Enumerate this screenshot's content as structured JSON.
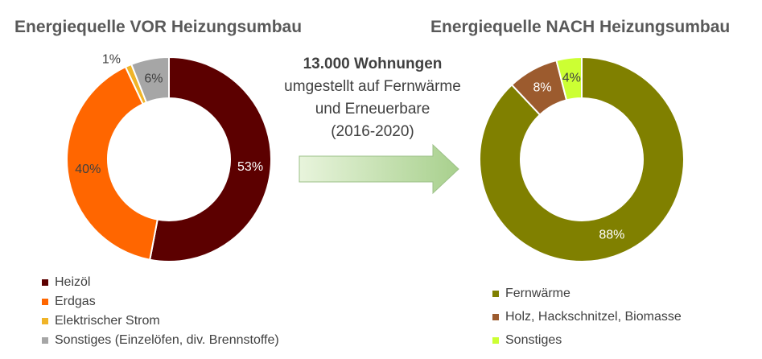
{
  "chart_data": [
    {
      "type": "donut",
      "title": "Energiequelle VOR Heizungsumbau",
      "slices": [
        {
          "name": "Heizöl",
          "value": 53,
          "label": "53%",
          "color": "#5c0000",
          "label_color": "#ffffff"
        },
        {
          "name": "Erdgas",
          "value": 40,
          "label": "40%",
          "color": "#ff6600",
          "label_color": "#404040"
        },
        {
          "name": "Elektrischer Strom",
          "value": 1,
          "label": "1%",
          "color": "#f0b428",
          "label_color": "#404040"
        },
        {
          "name": "Sonstiges (Einzelöfen, div. Brennstoffe)",
          "value": 6,
          "label": "6%",
          "color": "#a6a6a6",
          "label_color": "#404040"
        }
      ]
    },
    {
      "type": "donut",
      "title": "Energiequelle NACH Heizungsumbau",
      "slices": [
        {
          "name": "Fernwärme",
          "value": 88,
          "label": "88%",
          "color": "#808000",
          "label_color": "#ffffff"
        },
        {
          "name": "Holz, Hackschnitzel, Biomasse",
          "value": 8,
          "label": "8%",
          "color": "#9c5b2e",
          "label_color": "#ffffff"
        },
        {
          "name": "Sonstiges",
          "value": 4,
          "label": "4%",
          "color": "#ccff33",
          "label_color": "#404040"
        }
      ]
    }
  ],
  "center": {
    "headline": "13.000 Wohnungen",
    "line1": "umgestellt auf Fernwärme",
    "line2": "und Erneuerbare",
    "line3": "(2016-2020)"
  },
  "arrow": {
    "color_light": "#e8f4dc",
    "color_dark": "#a8d08d",
    "border": "#9cc088"
  }
}
